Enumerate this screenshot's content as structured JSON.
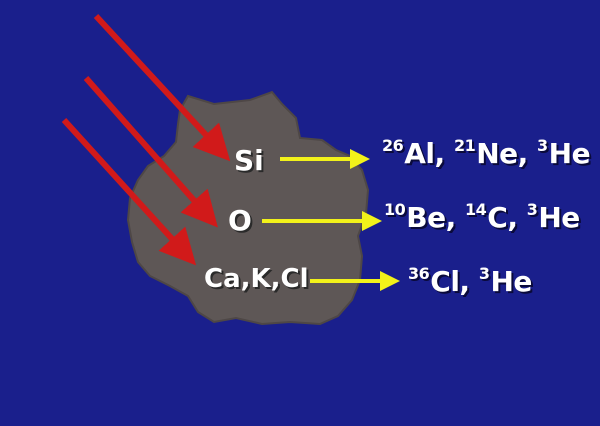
{
  "colors": {
    "background": "#1a1f8c",
    "rock": "#5e5756",
    "incoming_arrow": "#d11a1a",
    "product_arrow": "#f2f21a",
    "text": "#ffffff"
  },
  "targets": [
    {
      "element": "Si",
      "products": [
        {
          "mass": "26",
          "symbol": "Al"
        },
        {
          "mass": "21",
          "symbol": "Ne"
        },
        {
          "mass": "3",
          "symbol": "He"
        }
      ]
    },
    {
      "element": "O",
      "products": [
        {
          "mass": "10",
          "symbol": "Be"
        },
        {
          "mass": "14",
          "symbol": "C"
        },
        {
          "mass": "3",
          "symbol": "He"
        }
      ]
    },
    {
      "element": "Ca,K,Cl",
      "products": [
        {
          "mass": "36",
          "symbol": "Cl"
        },
        {
          "mass": "3",
          "symbol": "He"
        }
      ]
    }
  ]
}
